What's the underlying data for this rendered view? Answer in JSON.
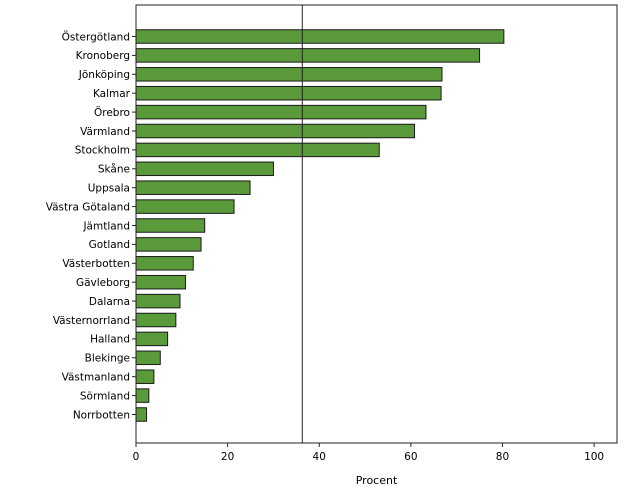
{
  "chart_data": {
    "type": "bar",
    "orientation": "horizontal",
    "categories": [
      "Östergötland",
      "Kronoberg",
      "Jönköping",
      "Kalmar",
      "Örebro",
      "Värmland",
      "Stockholm",
      "Skåne",
      "Uppsala",
      "Västra Götaland",
      "Jämtland",
      "Gotland",
      "Västerbotten",
      "Gävleborg",
      "Dalarna",
      "Västernorrland",
      "Halland",
      "Blekinge",
      "Västmanland",
      "Sörmland",
      "Norrbotten"
    ],
    "values": [
      80.3,
      75.0,
      66.8,
      66.6,
      63.3,
      60.8,
      53.1,
      30.0,
      24.9,
      21.4,
      15.0,
      14.2,
      12.5,
      10.8,
      9.6,
      8.7,
      6.9,
      5.3,
      3.9,
      2.8,
      2.3
    ],
    "title": "",
    "xlabel": "Procent",
    "ylabel": "",
    "xlim": [
      0,
      105
    ],
    "xticks": [
      0,
      20,
      40,
      60,
      80,
      100
    ],
    "reference_line": 36.3,
    "bar_color": "#5a9a3a",
    "bar_edge_color": "#1a1a1a",
    "grid": false
  }
}
